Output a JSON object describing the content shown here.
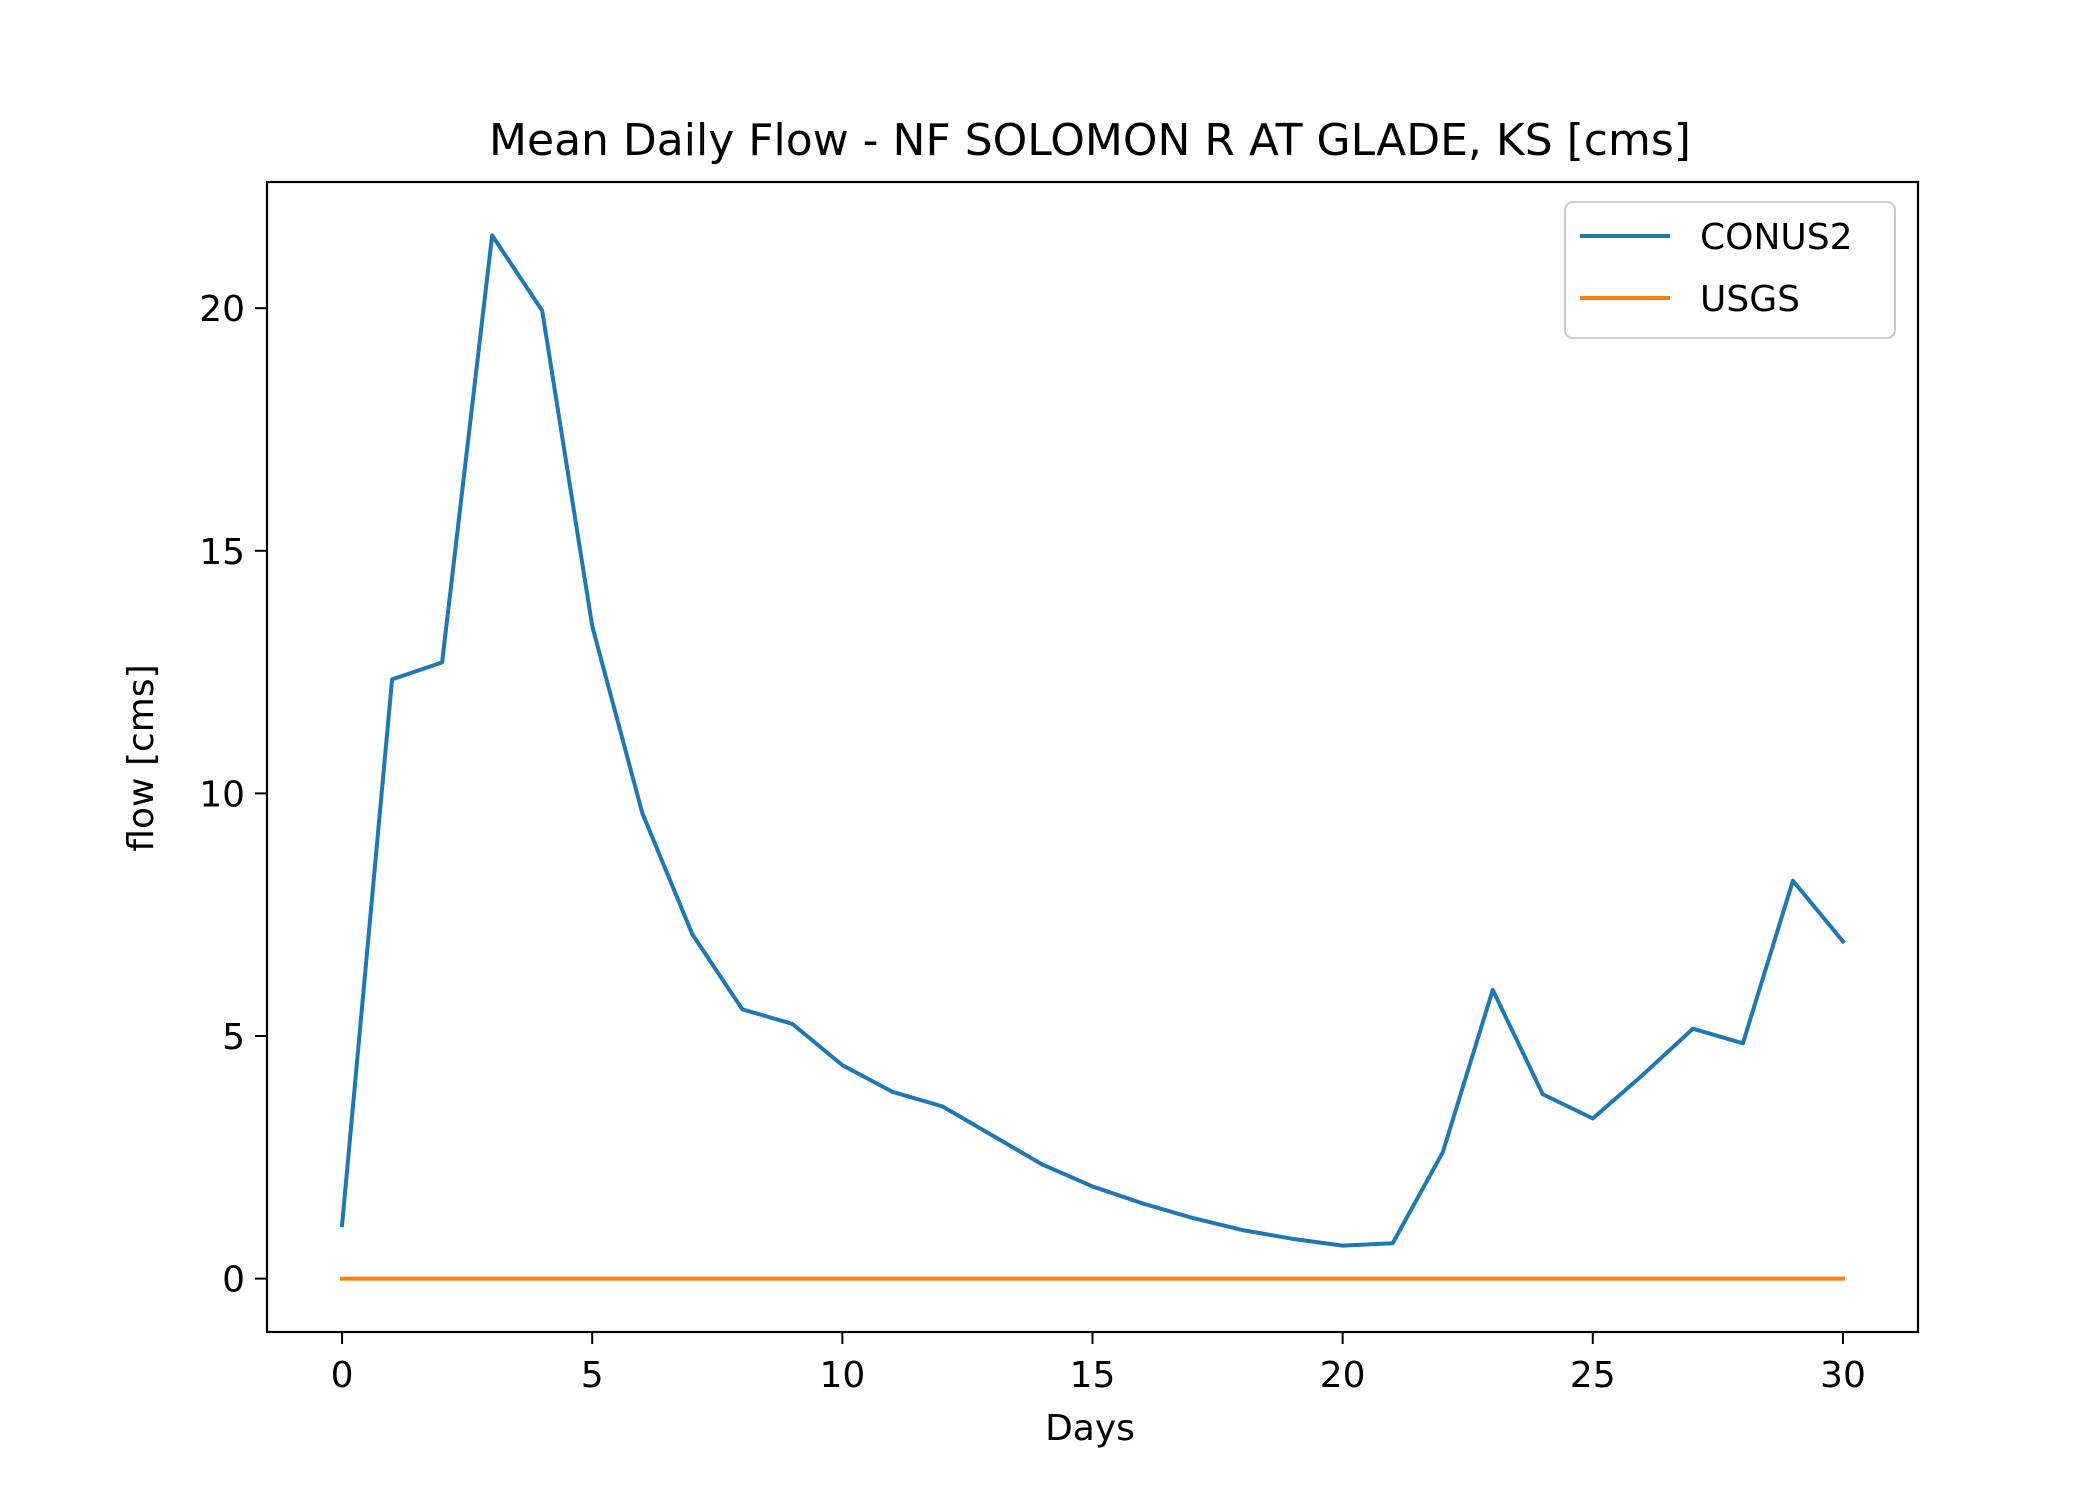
{
  "chart_data": {
    "type": "line",
    "title": "Mean Daily Flow - NF SOLOMON R AT GLADE, KS [cms]",
    "xlabel": "Days",
    "ylabel": "flow [cms]",
    "xlim": [
      -1.5,
      31.5
    ],
    "ylim": [
      -1.1,
      22.6
    ],
    "xticks": [
      0,
      5,
      10,
      15,
      20,
      25,
      30
    ],
    "yticks": [
      0,
      5,
      10,
      15,
      20
    ],
    "grid": false,
    "legend_position": "upper right",
    "x": [
      0,
      1,
      2,
      3,
      4,
      5,
      6,
      7,
      8,
      9,
      10,
      11,
      12,
      13,
      14,
      15,
      16,
      17,
      18,
      19,
      20,
      21,
      22,
      23,
      24,
      25,
      26,
      27,
      28,
      29,
      30
    ],
    "series": [
      {
        "name": "CONUS2",
        "color": "#1f77b4",
        "values": [
          1.1,
          12.35,
          12.7,
          21.5,
          19.95,
          13.45,
          9.6,
          7.1,
          5.55,
          5.25,
          4.4,
          3.85,
          3.55,
          2.95,
          2.35,
          1.9,
          1.55,
          1.25,
          1.0,
          0.82,
          0.68,
          0.73,
          2.6,
          5.95,
          3.8,
          3.3,
          4.2,
          5.15,
          4.85,
          8.2,
          6.95
        ]
      },
      {
        "name": "USGS",
        "color": "#ff7f0e",
        "values": [
          0,
          0,
          0,
          0,
          0,
          0,
          0,
          0,
          0,
          0,
          0,
          0,
          0,
          0,
          0,
          0,
          0,
          0,
          0,
          0,
          0,
          0,
          0,
          0,
          0,
          0,
          0,
          0,
          0,
          0,
          0
        ]
      }
    ]
  }
}
